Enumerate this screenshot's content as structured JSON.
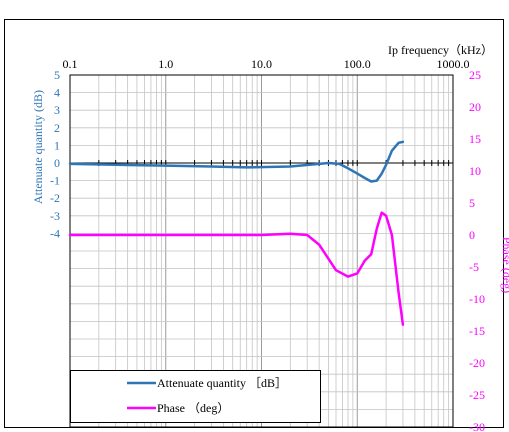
{
  "chart_data": {
    "type": "line",
    "x_scale": "log",
    "xlim": [
      0.1,
      1000
    ],
    "x_ticks": [
      0.1,
      1,
      10,
      100,
      1000
    ],
    "x_tick_labels": [
      "0.1",
      "1.0",
      "10.0",
      "100.0",
      "1000.0"
    ],
    "xlabel": "Ip frequency（kHz）",
    "y_left": {
      "label": "Attenuate quantity (dB)",
      "ticks": [
        5,
        4,
        3,
        2,
        1,
        0,
        -1,
        -2,
        -3,
        -4
      ],
      "ylim": [
        -15,
        5
      ],
      "color": "#2e75b6"
    },
    "y_right": {
      "label": "Phase (deg)",
      "ticks": [
        25,
        20,
        15,
        10,
        5,
        0,
        -5,
        -10,
        -15,
        -20,
        -25,
        -30
      ],
      "ylim": [
        -30,
        25
      ],
      "color": "#ff00ff"
    },
    "grid": true,
    "legend_position": "bottom-left",
    "series": [
      {
        "name": "Attenuate quantity ［dB］",
        "axis": "left",
        "color": "#2e75b6",
        "x": [
          0.1,
          0.3,
          1,
          3,
          7,
          20,
          40,
          50,
          65,
          80,
          100,
          120,
          140,
          160,
          180,
          200,
          230,
          270,
          300
        ],
        "y": [
          -0.05,
          -0.1,
          -0.15,
          -0.2,
          -0.25,
          -0.2,
          -0.05,
          0.0,
          -0.05,
          -0.3,
          -0.6,
          -0.85,
          -1.05,
          -1.0,
          -0.6,
          -0.1,
          0.7,
          1.15,
          1.2
        ]
      },
      {
        "name": "Phase （deg）",
        "axis": "right",
        "color": "#ff00ff",
        "x": [
          0.1,
          0.3,
          1,
          3,
          10,
          20,
          30,
          40,
          60,
          80,
          100,
          120,
          140,
          160,
          180,
          200,
          230,
          270,
          300
        ],
        "y": [
          0.0,
          0.0,
          0.0,
          0.0,
          0.0,
          0.2,
          0.0,
          -1.5,
          -5.5,
          -6.5,
          -6.0,
          -4.0,
          -3.0,
          1.0,
          3.5,
          3.0,
          0.0,
          -9.0,
          -14.0
        ]
      }
    ]
  }
}
